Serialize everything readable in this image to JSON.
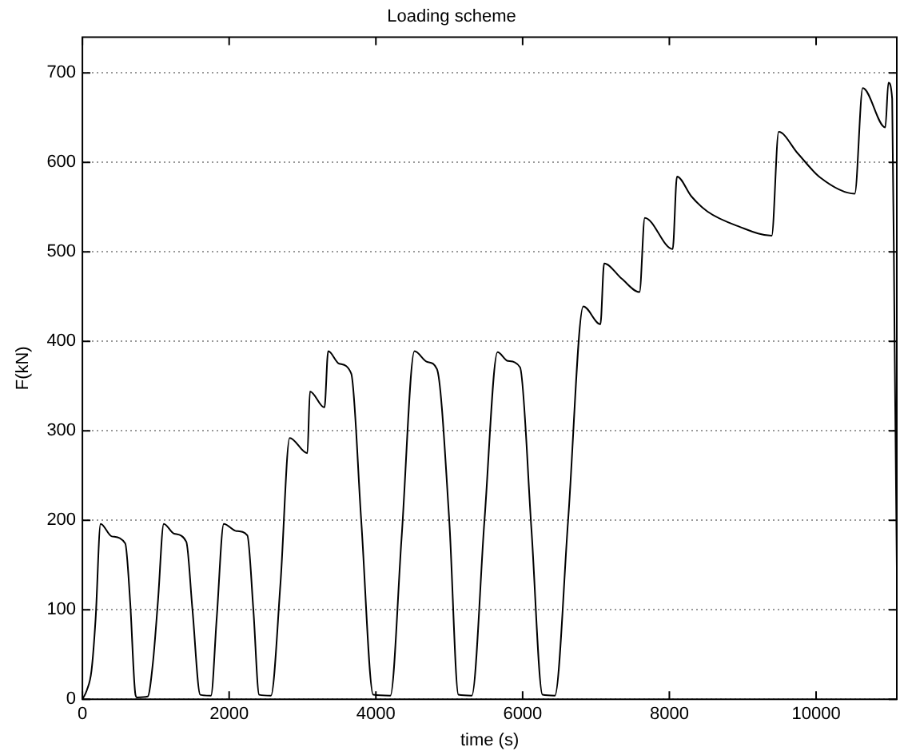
{
  "chart_data": {
    "type": "line",
    "title": "Loading scheme",
    "xlabel": "time (s)",
    "ylabel": "F(kN)",
    "x": [
      0,
      60,
      124,
      180,
      248,
      400,
      584,
      650,
      723,
      745,
      890,
      960,
      1030,
      1109,
      1250,
      1416,
      1500,
      1606,
      1752,
      1830,
      1927,
      2100,
      2248,
      2330,
      2409,
      2569,
      2700,
      2825,
      3066,
      3102,
      3299,
      3350,
      3500,
      3664,
      3800,
      3964,
      4197,
      4350,
      4526,
      4700,
      4832,
      5000,
      5125,
      5307,
      5480,
      5658,
      5800,
      5965,
      6120,
      6271,
      6439,
      6620,
      6827,
      7060,
      7111,
      7350,
      7593,
      7665,
      8045,
      8104,
      8300,
      8519,
      8957,
      9395,
      9490,
      9750,
      10057,
      10527,
      10636,
      10943,
      10986,
      11037,
      11070,
      11100
    ],
    "series": [
      {
        "color": "#000000",
        "values": [
          0,
          10,
          32,
          90,
          196,
          182,
          174,
          110,
          5,
          2,
          3,
          40,
          110,
          196,
          185,
          176,
          100,
          5,
          4,
          90,
          196,
          188,
          183,
          100,
          5,
          4,
          130,
          292,
          275,
          344,
          326,
          389,
          375,
          364,
          200,
          5,
          4,
          180,
          389,
          377,
          369,
          200,
          5,
          4,
          200,
          388,
          378,
          371,
          190,
          5,
          4,
          200,
          439,
          419,
          487,
          470,
          455,
          538,
          503,
          584,
          562,
          545,
          528,
          518,
          634,
          610,
          583,
          565,
          683,
          639,
          689,
          671,
          400,
          147
        ]
      }
    ],
    "xlim": [
      0,
      11100
    ],
    "xticks": [
      0,
      2000,
      4000,
      6000,
      8000,
      10000
    ],
    "ylim": [
      0,
      740
    ],
    "yticks": [
      0,
      100,
      200,
      300,
      400,
      500,
      600,
      700
    ],
    "grid": "y",
    "legend": false,
    "marker": "none",
    "line_style": "solid"
  }
}
